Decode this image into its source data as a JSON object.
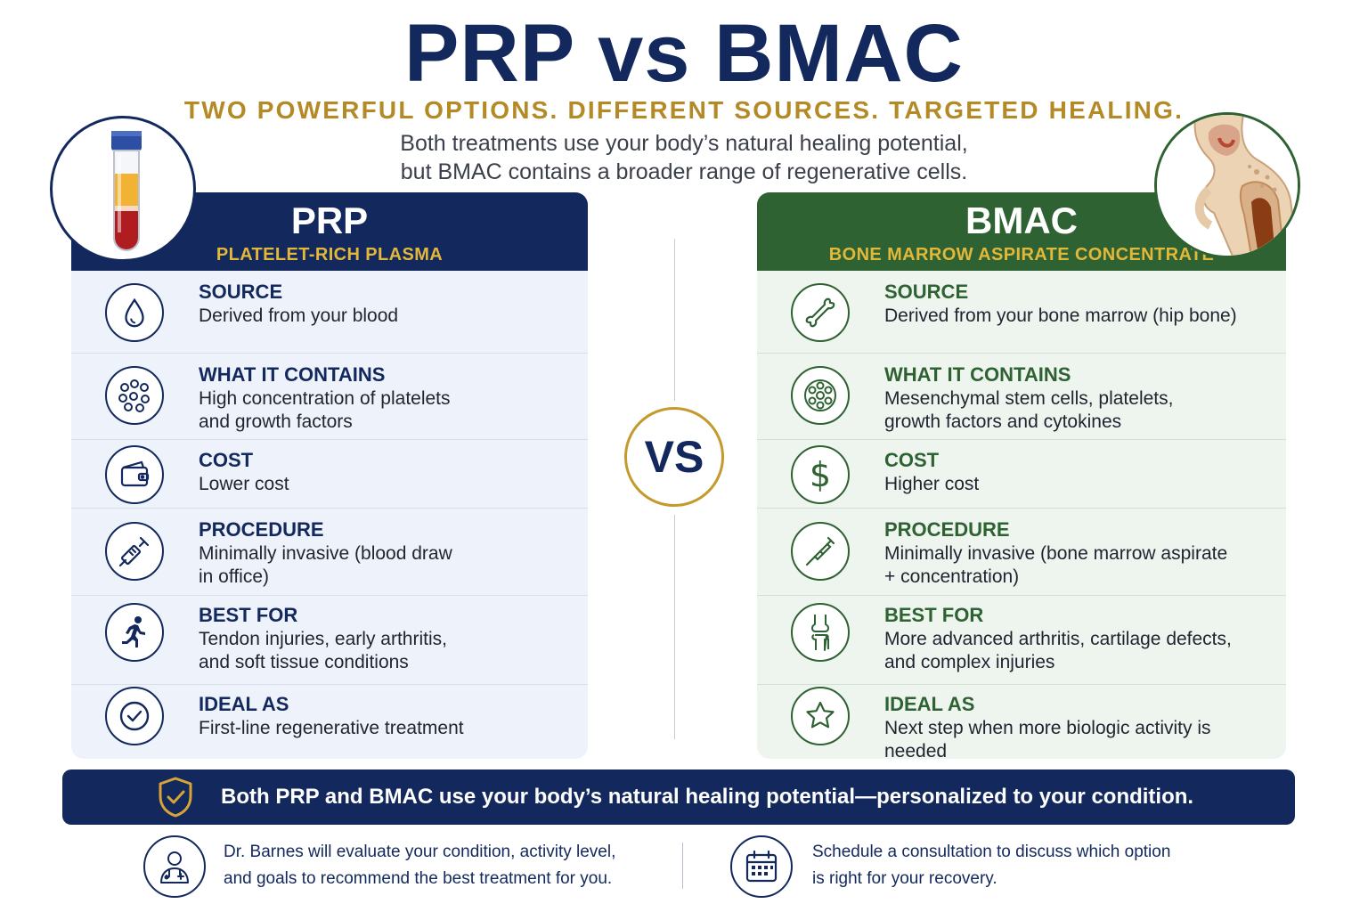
{
  "title": "PRP vs BMAC",
  "tagline": "TWO POWERFUL OPTIONS. DIFFERENT SOURCES. TARGETED HEALING.",
  "intro": {
    "line1": "Both treatments use your body’s natural healing potential,",
    "line2": "but BMAC contains a broader range of regenerative cells."
  },
  "vs_label": "VS",
  "colors": {
    "navy": "#13285c",
    "green": "#2f6232",
    "gold": "#b38a26"
  },
  "prp": {
    "title": "PRP",
    "subtitle": "PLATELET-RICH PLASMA",
    "image": "blood-tube-illustration",
    "rows": [
      {
        "icon": "droplet-icon",
        "label": "SOURCE",
        "value": "Derived from your blood"
      },
      {
        "icon": "cells-icon",
        "label": "WHAT IT CONTAINS",
        "value": "High concentration of platelets\nand growth factors"
      },
      {
        "icon": "wallet-icon",
        "label": "COST",
        "value": "Lower cost"
      },
      {
        "icon": "syringe-icon",
        "label": "PROCEDURE",
        "value": "Minimally invasive (blood draw\nin office)"
      },
      {
        "icon": "runner-icon",
        "label": "BEST FOR",
        "value": "Tendon injuries, early arthritis,\nand soft tissue conditions"
      },
      {
        "icon": "checkmark-icon",
        "label": "IDEAL AS",
        "value": "First-line regenerative treatment"
      }
    ]
  },
  "bmac": {
    "title": "BMAC",
    "subtitle": "BONE MARROW ASPIRATE CONCENTRATE",
    "image": "bone-marrow-illustration",
    "rows": [
      {
        "icon": "bone-icon",
        "label": "SOURCE",
        "value": "Derived from your bone marrow (hip bone)"
      },
      {
        "icon": "stem-cell-icon",
        "label": "WHAT IT CONTAINS",
        "value": "Mesenchymal stem cells, platelets,\ngrowth factors and cytokines"
      },
      {
        "icon": "dollar-icon",
        "label": "COST",
        "value": "Higher cost"
      },
      {
        "icon": "needle-icon",
        "label": "PROCEDURE",
        "value": "Minimally invasive (bone marrow aspirate\n+ concentration)"
      },
      {
        "icon": "knee-joint-icon",
        "label": "BEST FOR",
        "value": "More advanced arthritis, cartilage defects,\nand complex injuries"
      },
      {
        "icon": "star-icon",
        "label": "IDEAL AS",
        "value": "Next step when more biologic activity is needed"
      }
    ]
  },
  "banner": {
    "icon": "shield-check-icon",
    "text": "Both PRP and BMAC use your body’s natural healing potential—personalized to your condition."
  },
  "footer": {
    "left": {
      "icon": "doctor-icon",
      "text": "Dr. Barnes will evaluate your condition, activity level,\nand goals to recommend the best treatment for you."
    },
    "right": {
      "icon": "calendar-icon",
      "text": "Schedule a consultation to discuss which option\nis right for your recovery."
    }
  }
}
